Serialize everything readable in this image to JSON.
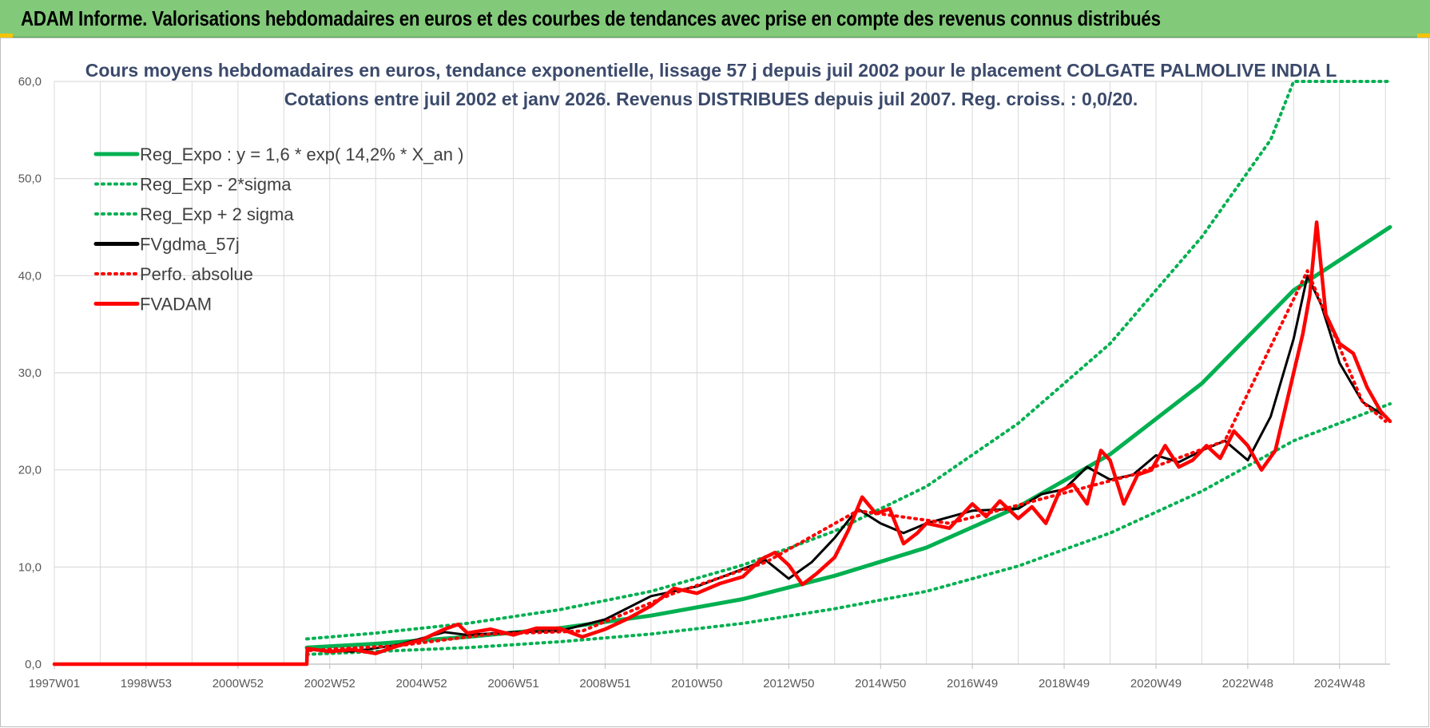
{
  "header": {
    "title": "ADAM Informe. Valorisations hebdomadaires en euros et des courbes de tendances avec prise en compte des revenus connus distribués"
  },
  "colors": {
    "banner": "#82c97a",
    "reg_expo": "#00b050",
    "fv_gdma": "#000000",
    "fv_adam": "#ff0000",
    "grid": "#d9d9d9"
  },
  "chart_data": {
    "type": "line",
    "title": "Cours moyens hebdomadaires en euros, tendance exponentielle, lissage 57 j depuis juil 2002 pour le placement COLGATE PALMOLIVE INDIA L",
    "subtitle": "Cotations entre juil 2002 et janv 2026. Revenus DISTRIBUES depuis juil 2007. Reg. croiss. : 0,0/20.",
    "xlabel": "",
    "ylabel": "",
    "xlim": [
      1997.0,
      2026.1
    ],
    "ylim": [
      0,
      60
    ],
    "yticks": [
      0,
      10,
      20,
      30,
      40,
      50,
      60
    ],
    "ytick_labels": [
      "0,0",
      "10,0",
      "20,0",
      "30,0",
      "40,0",
      "50,0",
      "60,0"
    ],
    "xticks": [
      1997.0,
      1999.0,
      2001.0,
      2003.0,
      2005.0,
      2007.0,
      2009.0,
      2011.0,
      2013.0,
      2015.0,
      2017.0,
      2019.0,
      2021.0,
      2023.0,
      2025.0
    ],
    "xtick_labels": [
      "1997W01",
      "1998W53",
      "2000W52",
      "2002W52",
      "2004W52",
      "2006W51",
      "2008W51",
      "2010W50",
      "2012W50",
      "2014W50",
      "2016W49",
      "2018W49",
      "2020W49",
      "2022W48",
      "2024W48"
    ],
    "grid": true,
    "legend_position": "top-left",
    "series": [
      {
        "name": "Reg_Expo : y = 1,6 * exp( 14,2% *  X_an )",
        "style": "solid",
        "color": "#00b050",
        "x": [
          2002.5,
          2004,
          2006,
          2008,
          2010,
          2012,
          2014,
          2016,
          2018,
          2020,
          2022,
          2024,
          2026.1
        ],
        "y": [
          1.7,
          2.1,
          2.8,
          3.7,
          5.0,
          6.7,
          9.1,
          12.0,
          16.2,
          21.6,
          28.9,
          38.5,
          45.0
        ]
      },
      {
        "name": "Reg_Exp - 2*sigma",
        "style": "dotted",
        "color": "#00b050",
        "x": [
          2002.5,
          2004,
          2006,
          2008,
          2010,
          2012,
          2014,
          2016,
          2018,
          2020,
          2022,
          2024,
          2026.1
        ],
        "y": [
          1.0,
          1.3,
          1.7,
          2.3,
          3.1,
          4.2,
          5.7,
          7.5,
          10.1,
          13.5,
          17.8,
          23.0,
          26.8
        ]
      },
      {
        "name": "Reg_Exp + 2 sigma",
        "style": "dotted",
        "color": "#00b050",
        "x": [
          2002.5,
          2004,
          2006,
          2008,
          2010,
          2012,
          2014,
          2016,
          2018,
          2020,
          2022,
          2023.5,
          2024,
          2026.1
        ],
        "y": [
          2.6,
          3.2,
          4.2,
          5.6,
          7.5,
          10.2,
          13.7,
          18.3,
          24.8,
          33.0,
          44.0,
          54.0,
          60.0,
          60.0
        ]
      },
      {
        "name": "FVgdma_57j",
        "style": "solid",
        "color": "#000000",
        "x": [
          1997.0,
          2002.5,
          2002.51,
          2003.5,
          2004.5,
          2005.5,
          2006.0,
          2007.0,
          2008.0,
          2009.0,
          2010.0,
          2011.0,
          2012.0,
          2012.5,
          2013.0,
          2013.5,
          2014.0,
          2014.5,
          2015.0,
          2015.5,
          2016.0,
          2017.0,
          2018.0,
          2018.5,
          2019.0,
          2019.5,
          2020.0,
          2020.5,
          2021.0,
          2021.5,
          2022.0,
          2022.5,
          2023.0,
          2023.5,
          2024.0,
          2024.3,
          2024.6,
          2025.0,
          2025.5,
          2026.0
        ],
        "y": [
          0,
          0,
          1.5,
          1.3,
          2.0,
          3.3,
          3.0,
          3.3,
          3.4,
          4.6,
          7.0,
          8.0,
          9.8,
          10.7,
          8.8,
          10.5,
          13.0,
          16.0,
          14.5,
          13.5,
          14.5,
          15.8,
          16.0,
          17.5,
          18.0,
          20.3,
          19.0,
          19.5,
          21.5,
          20.8,
          22.0,
          23.0,
          21.0,
          25.5,
          33.5,
          40.0,
          37.0,
          31.0,
          27.0,
          25.5
        ]
      },
      {
        "name": "Perfo. absolue",
        "style": "dotted",
        "color": "#ff0000",
        "x": [
          1997.0,
          2002.5,
          2002.51,
          2004.5,
          2006.5,
          2008.5,
          2010.5,
          2012.5,
          2014.5,
          2016.5,
          2018.5,
          2020.5,
          2022.5,
          2024.3,
          2025.5,
          2026.0
        ],
        "y": [
          0,
          0,
          1.4,
          1.9,
          3.1,
          3.4,
          7.3,
          10.5,
          15.8,
          14.5,
          17.0,
          19.5,
          23.0,
          40.5,
          27.0,
          25.0
        ]
      },
      {
        "name": "FVADAM",
        "style": "solid",
        "color": "#ff0000",
        "x": [
          1997.0,
          2002.5,
          2002.51,
          2003.0,
          2003.5,
          2004.0,
          2004.5,
          2005.0,
          2005.5,
          2005.8,
          2006.0,
          2006.5,
          2007.0,
          2007.5,
          2008.0,
          2008.5,
          2009.0,
          2009.5,
          2010.0,
          2010.5,
          2011.0,
          2011.5,
          2012.0,
          2012.4,
          2012.7,
          2013.0,
          2013.3,
          2013.6,
          2014.0,
          2014.3,
          2014.6,
          2014.9,
          2015.2,
          2015.5,
          2015.8,
          2016.0,
          2016.5,
          2017.0,
          2017.3,
          2017.6,
          2018.0,
          2018.3,
          2018.6,
          2018.9,
          2019.2,
          2019.5,
          2019.8,
          2020.0,
          2020.3,
          2020.6,
          2020.9,
          2021.2,
          2021.5,
          2021.8,
          2022.1,
          2022.4,
          2022.7,
          2023.0,
          2023.3,
          2023.6,
          2023.9,
          2024.2,
          2024.35,
          2024.5,
          2024.7,
          2025.0,
          2025.3,
          2025.6,
          2025.9,
          2026.1
        ],
        "y": [
          0,
          0,
          1.6,
          1.3,
          1.5,
          1.1,
          1.9,
          2.5,
          3.6,
          4.1,
          3.2,
          3.6,
          3.0,
          3.7,
          3.7,
          2.8,
          3.6,
          4.7,
          6.0,
          7.8,
          7.3,
          8.3,
          9.0,
          10.8,
          11.5,
          10.2,
          8.2,
          9.3,
          11.0,
          13.8,
          17.2,
          15.5,
          16.0,
          12.4,
          13.5,
          14.5,
          14.0,
          16.5,
          15.2,
          16.8,
          15.0,
          16.2,
          14.5,
          17.8,
          18.5,
          16.5,
          22.0,
          21.0,
          16.5,
          19.5,
          20.0,
          22.5,
          20.3,
          21.0,
          22.5,
          21.2,
          24.0,
          22.5,
          20.0,
          22.0,
          28.0,
          34.0,
          38.0,
          45.5,
          36.0,
          33.0,
          32.0,
          28.5,
          26.0,
          25.0
        ]
      }
    ]
  }
}
